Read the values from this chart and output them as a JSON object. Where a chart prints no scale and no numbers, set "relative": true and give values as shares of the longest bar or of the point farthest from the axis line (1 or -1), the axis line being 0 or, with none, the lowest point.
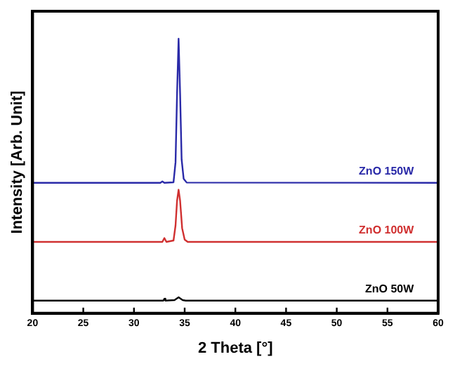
{
  "chart_data": {
    "type": "line",
    "xlabel": "2 Theta [°]",
    "ylabel": "Intensity [Arb. Unit]",
    "relative": true,
    "xlim": [
      20,
      60
    ],
    "xticks": [
      20,
      25,
      30,
      35,
      40,
      45,
      50,
      55,
      60
    ],
    "grid": false,
    "legend": false,
    "marker": "none",
    "line_style": "solid",
    "series": [
      {
        "name": "ZnO 150W",
        "color": "#2a2aa8",
        "x": [
          20,
          32.6,
          32.8,
          33.0,
          33.9,
          34.1,
          34.25,
          34.4,
          34.55,
          34.7,
          34.9,
          35.2,
          60
        ],
        "values": [
          0.475,
          0.475,
          0.48,
          0.475,
          0.477,
          0.55,
          0.8,
          1.0,
          0.8,
          0.56,
          0.49,
          0.476,
          0.475
        ]
      },
      {
        "name": "ZnO 100W",
        "color": "#d03030",
        "x": [
          20,
          32.8,
          33.0,
          33.2,
          33.9,
          34.1,
          34.25,
          34.4,
          34.55,
          34.75,
          35.0,
          35.3,
          60
        ],
        "values": [
          0.26,
          0.26,
          0.274,
          0.26,
          0.265,
          0.32,
          0.41,
          0.45,
          0.41,
          0.31,
          0.268,
          0.26,
          0.26
        ]
      },
      {
        "name": "ZnO 50W",
        "color": "#000000",
        "x": [
          20,
          32.9,
          33.0,
          33.1,
          34.0,
          34.4,
          34.8,
          35.1,
          60
        ],
        "values": [
          0.046,
          0.046,
          0.053,
          0.046,
          0.048,
          0.058,
          0.048,
          0.046,
          0.046
        ]
      }
    ]
  }
}
